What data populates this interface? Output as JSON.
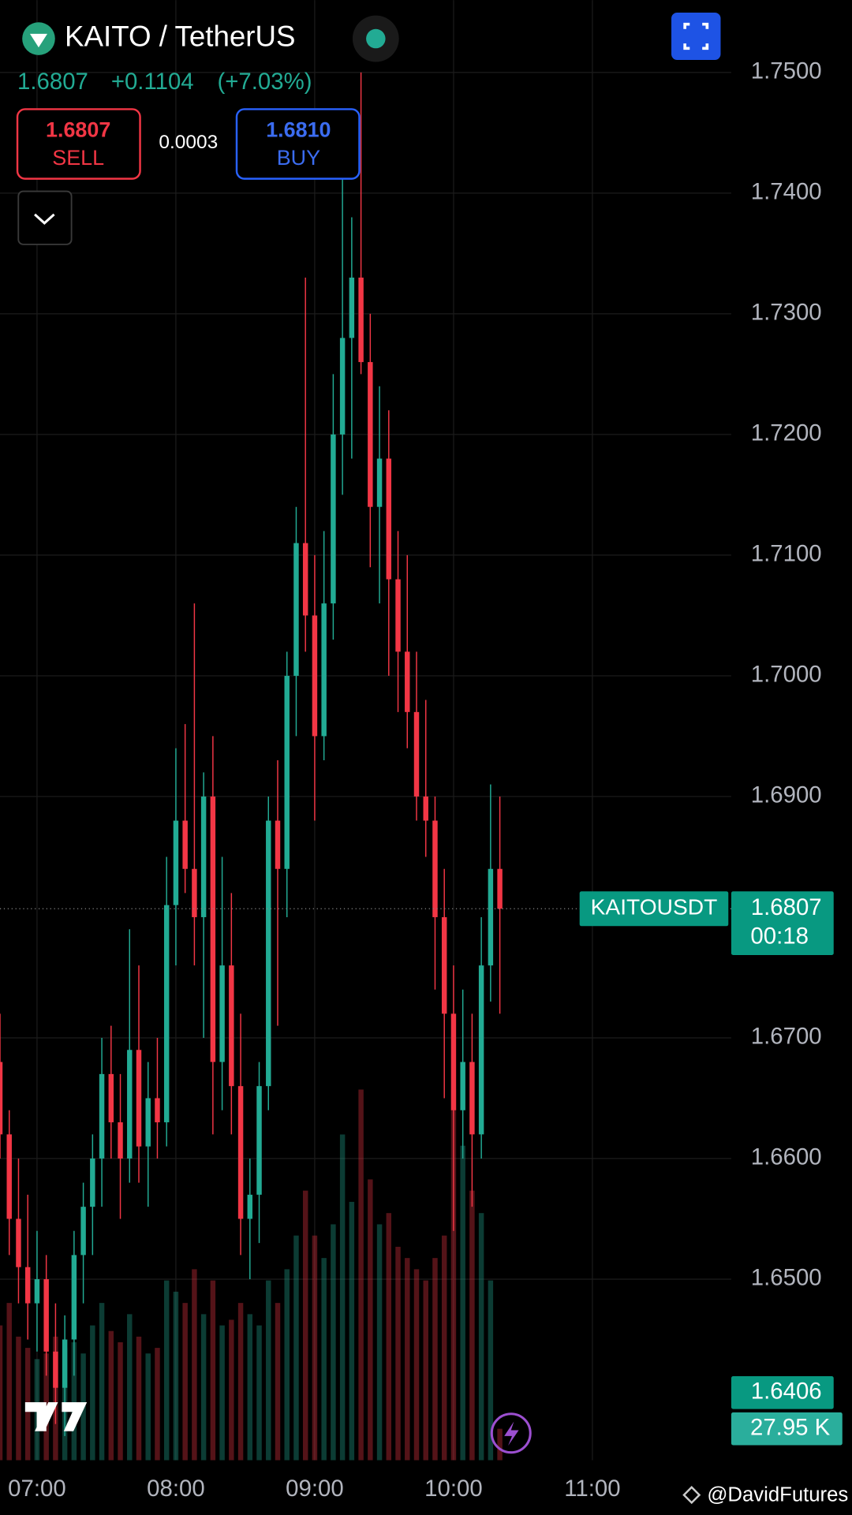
{
  "header": {
    "symbol": "KAITO / TetherUS",
    "last": "1.6807",
    "change": "+0.1104",
    "change_pct": "(+7.03%)"
  },
  "trade": {
    "sell_price": "1.6807",
    "sell_label": "SELL",
    "spread": "0.0003",
    "buy_price": "1.6810",
    "buy_label": "BUY"
  },
  "chart_data": {
    "type": "candlestick",
    "x": [
      404,
      408,
      412,
      416,
      420,
      424,
      428,
      432,
      436,
      440,
      444,
      448,
      452,
      456,
      460,
      464,
      468,
      472,
      476,
      480,
      484,
      488,
      492,
      496,
      500,
      504,
      508,
      512,
      516,
      520,
      524,
      528,
      532,
      536,
      540,
      544,
      548,
      552,
      556,
      560,
      564,
      568,
      572,
      576,
      580,
      584,
      588,
      592,
      596,
      600,
      604,
      608,
      612,
      616,
      620
    ],
    "open": [
      1.668,
      1.662,
      1.655,
      1.651,
      1.648,
      1.65,
      1.644,
      1.641,
      1.645,
      1.652,
      1.656,
      1.66,
      1.667,
      1.663,
      1.66,
      1.669,
      1.661,
      1.665,
      1.663,
      1.681,
      1.688,
      1.684,
      1.68,
      1.69,
      1.668,
      1.676,
      1.666,
      1.655,
      1.657,
      1.666,
      1.688,
      1.684,
      1.7,
      1.711,
      1.705,
      1.695,
      1.706,
      1.72,
      1.728,
      1.733,
      1.726,
      1.714,
      1.718,
      1.708,
      1.702,
      1.697,
      1.69,
      1.688,
      1.68,
      1.672,
      1.664,
      1.668,
      1.662,
      1.676,
      1.684
    ],
    "high": [
      1.672,
      1.664,
      1.66,
      1.657,
      1.654,
      1.652,
      1.648,
      1.647,
      1.654,
      1.658,
      1.662,
      1.67,
      1.671,
      1.667,
      1.679,
      1.676,
      1.668,
      1.67,
      1.685,
      1.694,
      1.696,
      1.706,
      1.692,
      1.695,
      1.685,
      1.682,
      1.672,
      1.66,
      1.668,
      1.69,
      1.693,
      1.702,
      1.714,
      1.733,
      1.71,
      1.712,
      1.725,
      1.742,
      1.738,
      1.75,
      1.73,
      1.724,
      1.722,
      1.712,
      1.71,
      1.702,
      1.698,
      1.69,
      1.684,
      1.676,
      1.674,
      1.672,
      1.68,
      1.691,
      1.69
    ],
    "low": [
      1.66,
      1.652,
      1.648,
      1.645,
      1.644,
      1.642,
      1.638,
      1.637,
      1.642,
      1.648,
      1.652,
      1.656,
      1.66,
      1.655,
      1.658,
      1.658,
      1.656,
      1.66,
      1.661,
      1.676,
      1.682,
      1.676,
      1.67,
      1.662,
      1.664,
      1.662,
      1.652,
      1.65,
      1.653,
      1.664,
      1.671,
      1.68,
      1.695,
      1.702,
      1.688,
      1.693,
      1.703,
      1.715,
      1.718,
      1.725,
      1.709,
      1.706,
      1.7,
      1.697,
      1.694,
      1.688,
      1.685,
      1.674,
      1.665,
      1.654,
      1.66,
      1.656,
      1.66,
      1.673,
      1.672
    ],
    "close": [
      1.662,
      1.655,
      1.651,
      1.648,
      1.65,
      1.644,
      1.641,
      1.645,
      1.652,
      1.656,
      1.66,
      1.667,
      1.663,
      1.66,
      1.669,
      1.661,
      1.665,
      1.663,
      1.681,
      1.688,
      1.684,
      1.68,
      1.69,
      1.668,
      1.676,
      1.666,
      1.655,
      1.657,
      1.666,
      1.688,
      1.684,
      1.7,
      1.711,
      1.705,
      1.695,
      1.706,
      1.72,
      1.728,
      1.733,
      1.726,
      1.714,
      1.718,
      1.708,
      1.702,
      1.697,
      1.69,
      1.688,
      1.68,
      1.672,
      1.664,
      1.668,
      1.662,
      1.676,
      1.684,
      1.6807
    ],
    "volume": [
      120,
      140,
      110,
      100,
      90,
      95,
      110,
      100,
      105,
      95,
      120,
      140,
      115,
      105,
      130,
      110,
      95,
      100,
      160,
      150,
      140,
      170,
      130,
      160,
      120,
      125,
      140,
      130,
      120,
      160,
      140,
      170,
      200,
      240,
      200,
      180,
      210,
      290,
      230,
      330,
      250,
      210,
      220,
      190,
      180,
      170,
      160,
      180,
      200,
      330,
      280,
      240,
      220,
      160,
      27.95
    ],
    "up_color": "#22ab94",
    "down_color": "#f23645",
    "xlim": [
      404,
      720
    ],
    "xticks": [
      {
        "value": 420,
        "label": "07:00"
      },
      {
        "value": 480,
        "label": "08:00"
      },
      {
        "value": 540,
        "label": "09:00"
      },
      {
        "value": 600,
        "label": "10:00"
      },
      {
        "value": 660,
        "label": "11:00"
      }
    ],
    "ylim": [
      1.635,
      1.756
    ],
    "yticks": [
      {
        "value": 1.65,
        "label": "1.6500"
      },
      {
        "value": 1.66,
        "label": "1.6600"
      },
      {
        "value": 1.67,
        "label": "1.6700"
      },
      {
        "value": 1.69,
        "label": "1.6900"
      },
      {
        "value": 1.7,
        "label": "1.7000"
      },
      {
        "value": 1.71,
        "label": "1.7100"
      },
      {
        "value": 1.72,
        "label": "1.7200"
      },
      {
        "value": 1.73,
        "label": "1.7300"
      },
      {
        "value": 1.74,
        "label": "1.7400"
      },
      {
        "value": 1.75,
        "label": "1.7500"
      }
    ],
    "volume_lim": [
      0,
      1300
    ],
    "grid": true,
    "last_price": {
      "symbol": "KAITOUSDT",
      "value": 1.6807,
      "countdown": "00:18"
    },
    "price_marker": 1.6406,
    "last_volume": {
      "value": 27.95,
      "label": "27.95 K"
    }
  },
  "watermark": "@DavidFutures"
}
